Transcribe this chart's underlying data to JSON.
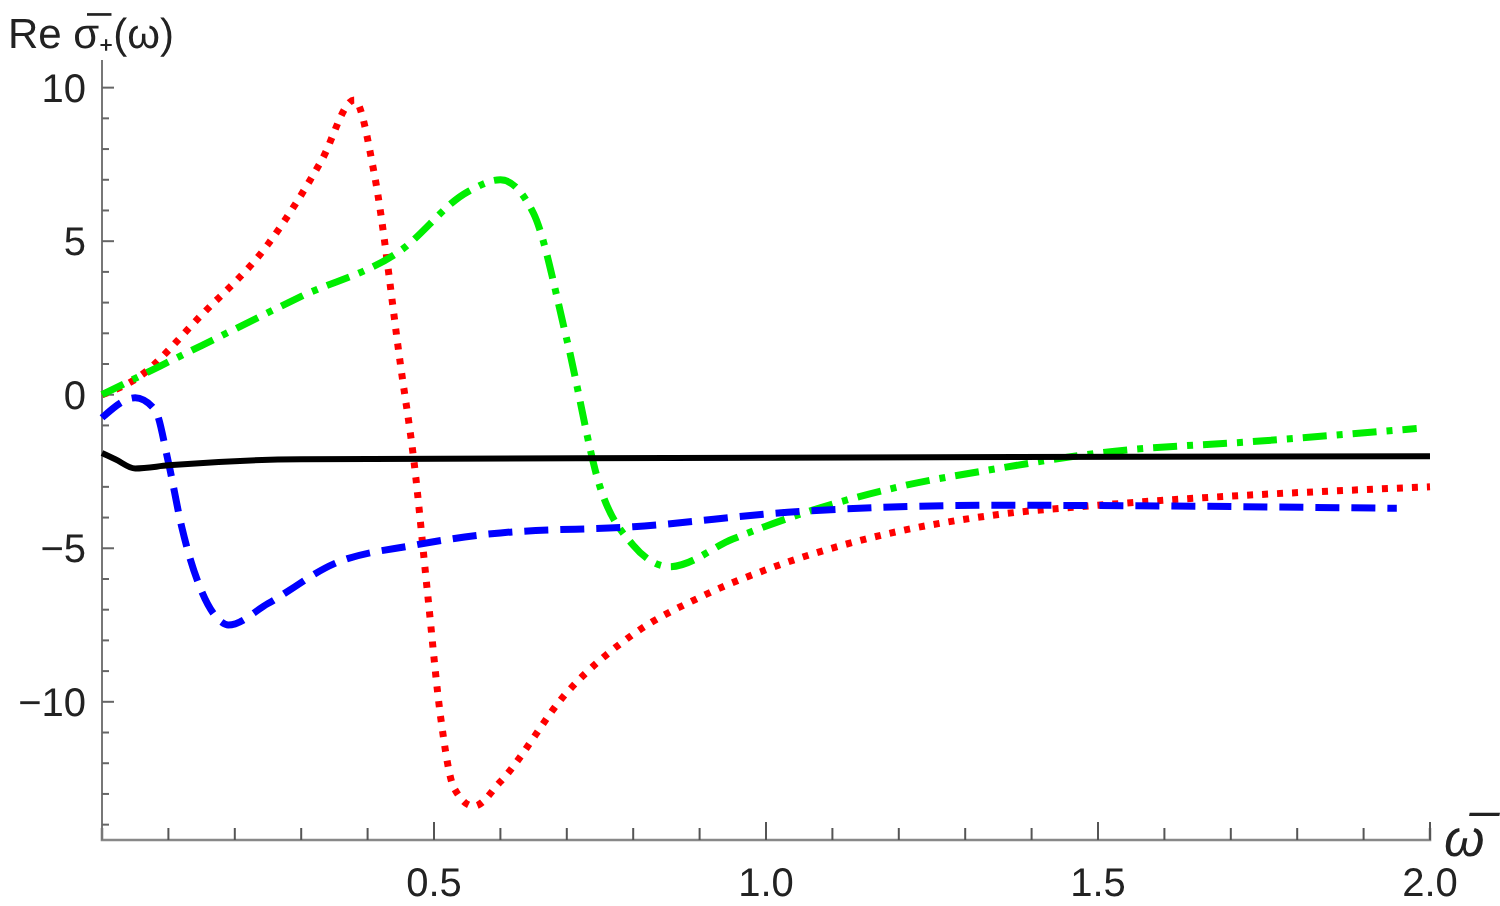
{
  "chart_data": {
    "type": "line",
    "ylabel": "Re σ̅₊(ω)",
    "xlabel": "ω̅",
    "xlim": [
      0,
      2.0
    ],
    "ylim": [
      -14.5,
      10.9
    ],
    "xticks": [
      {
        "value": 0.1,
        "label": null
      },
      {
        "value": 0.2,
        "label": null
      },
      {
        "value": 0.3,
        "label": null
      },
      {
        "value": 0.4,
        "label": null
      },
      {
        "value": 0.5,
        "label": "0.5"
      },
      {
        "value": 0.6,
        "label": null
      },
      {
        "value": 0.7,
        "label": null
      },
      {
        "value": 0.8,
        "label": null
      },
      {
        "value": 0.9,
        "label": null
      },
      {
        "value": 1.0,
        "label": "1.0"
      },
      {
        "value": 1.1,
        "label": null
      },
      {
        "value": 1.2,
        "label": null
      },
      {
        "value": 1.3,
        "label": null
      },
      {
        "value": 1.4,
        "label": null
      },
      {
        "value": 1.5,
        "label": "1.5"
      },
      {
        "value": 1.6,
        "label": null
      },
      {
        "value": 1.7,
        "label": null
      },
      {
        "value": 1.8,
        "label": null
      },
      {
        "value": 1.9,
        "label": null
      },
      {
        "value": 2.0,
        "label": "2.0"
      }
    ],
    "yticks": [
      {
        "value": -14,
        "label": null
      },
      {
        "value": -13,
        "label": null
      },
      {
        "value": -12,
        "label": null
      },
      {
        "value": -11,
        "label": null
      },
      {
        "value": -10,
        "label": "−10"
      },
      {
        "value": -9,
        "label": null
      },
      {
        "value": -8,
        "label": null
      },
      {
        "value": -7,
        "label": null
      },
      {
        "value": -6,
        "label": null
      },
      {
        "value": -5,
        "label": "−5"
      },
      {
        "value": -4,
        "label": null
      },
      {
        "value": -3,
        "label": null
      },
      {
        "value": -2,
        "label": null
      },
      {
        "value": -1,
        "label": null
      },
      {
        "value": 0,
        "label": "0"
      },
      {
        "value": 1,
        "label": null
      },
      {
        "value": 2,
        "label": null
      },
      {
        "value": 3,
        "label": null
      },
      {
        "value": 4,
        "label": null
      },
      {
        "value": 5,
        "label": "5"
      },
      {
        "value": 6,
        "label": null
      },
      {
        "value": 7,
        "label": null
      },
      {
        "value": 8,
        "label": null
      },
      {
        "value": 9,
        "label": null
      },
      {
        "value": 10,
        "label": "10"
      }
    ],
    "grid": false,
    "series": [
      {
        "color": "#ff0000",
        "line_style": "dotted",
        "x": [
          0,
          0.05,
          0.15,
          0.25,
          0.33,
          0.38,
          0.41,
          0.45,
          0.47,
          0.49,
          0.51,
          0.53,
          0.56,
          0.6,
          0.7,
          0.8,
          0.9,
          1.0,
          1.15,
          1.35,
          1.5,
          2.0
        ],
        "values": [
          0,
          0.5,
          2.6,
          4.9,
          7.6,
          9.6,
          7.2,
          0.9,
          -2.2,
          -6.4,
          -10.5,
          -12.8,
          -13.4,
          -12.6,
          -9.7,
          -7.8,
          -6.6,
          -5.7,
          -4.7,
          -3.9,
          -3.6,
          -3.0
        ]
      },
      {
        "color": "#00ee00",
        "line_style": "dashdot",
        "x": [
          0,
          0.15,
          0.3,
          0.45,
          0.55,
          0.6,
          0.65,
          0.7,
          0.75,
          0.8,
          0.855,
          0.95,
          1.05,
          1.2,
          1.35,
          1.5,
          1.75,
          1.98
        ],
        "values": [
          0,
          1.6,
          3.2,
          4.7,
          6.6,
          7.0,
          5.9,
          1.8,
          -3.0,
          -4.9,
          -5.6,
          -4.7,
          -3.9,
          -3.0,
          -2.4,
          -1.9,
          -1.5,
          -1.1
        ]
      },
      {
        "color": "#0000ff",
        "line_style": "dashed",
        "x": [
          0,
          0.05,
          0.08,
          0.1,
          0.12,
          0.15,
          0.18,
          0.19,
          0.25,
          0.35,
          0.47,
          0.6,
          0.8,
          1.05,
          1.35,
          1.95
        ],
        "values": [
          -0.75,
          -0.1,
          -0.5,
          -2.2,
          -4.3,
          -6.4,
          -7.4,
          -7.5,
          -6.8,
          -5.5,
          -4.9,
          -4.5,
          -4.3,
          -3.8,
          -3.6,
          -3.7
        ]
      },
      {
        "color": "#000000",
        "line_style": "solid",
        "x": [
          0,
          0.02,
          0.05,
          0.1,
          0.3,
          1.0,
          2.0
        ],
        "values": [
          -1.9,
          -2.1,
          -2.4,
          -2.3,
          -2.1,
          -2.05,
          -2.0
        ]
      }
    ]
  }
}
